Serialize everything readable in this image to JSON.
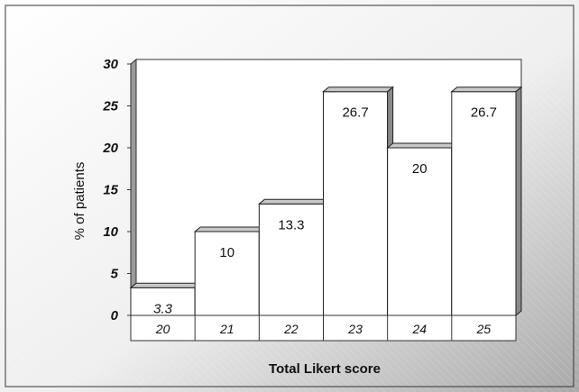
{
  "chart_data": {
    "type": "bar",
    "categories": [
      "20",
      "21",
      "22",
      "23",
      "24",
      "25"
    ],
    "values": [
      3.3,
      10,
      13.3,
      26.7,
      20,
      26.7
    ],
    "data_labels": [
      "3.3",
      "10",
      "13.3",
      "26.7",
      "20",
      "26.7"
    ],
    "title": "",
    "xlabel": "Total Likert score",
    "ylabel": "% of patients",
    "ylim": [
      0,
      30
    ],
    "yticks": [
      "0",
      "5",
      "10",
      "15",
      "20",
      "25",
      "30"
    ],
    "grid": false,
    "legend": "none",
    "bar_style": "3d",
    "colors": {
      "bar_fill": "#ffffff",
      "bar_top": "#c8c8c8",
      "bar_side": "#8a8a8a",
      "background_light": "#ffffff",
      "background_dark": "#a9a9a9"
    }
  }
}
